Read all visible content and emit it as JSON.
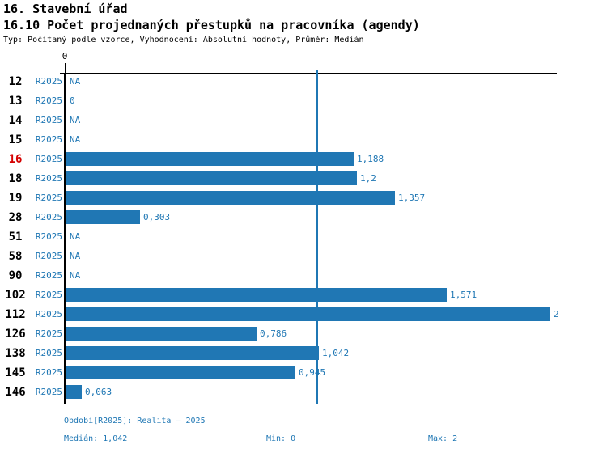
{
  "header": {
    "section_title": "16. Stavební úřad",
    "indicator_title": "16.10 Počet projednaných přestupků na pracovníka (agendy)",
    "meta": "Typ: Počítaný podle vzorce, Vyhodnocení: Absolutní hodnoty, Průměr: Medián"
  },
  "chart_data": {
    "type": "bar",
    "orientation": "horizontal",
    "title": "16.10 Počet projednaných přestupků na pracovníka (agendy)",
    "x_axis": {
      "min": 0,
      "max": 2,
      "zero_label": "0",
      "grid": false
    },
    "period_label": "R2025",
    "median": {
      "value": 1.042,
      "label": "1,042"
    },
    "categories": [
      "12",
      "13",
      "14",
      "15",
      "16",
      "18",
      "19",
      "28",
      "51",
      "58",
      "90",
      "102",
      "112",
      "126",
      "138",
      "145",
      "146"
    ],
    "values": [
      null,
      0,
      null,
      null,
      1.188,
      1.2,
      1.357,
      0.303,
      null,
      null,
      null,
      1.571,
      2,
      0.786,
      1.042,
      0.945,
      0.063
    ],
    "rows": [
      {
        "id": "12",
        "period": "R2025",
        "value": null,
        "label": "NA",
        "highlight": false
      },
      {
        "id": "13",
        "period": "R2025",
        "value": 0,
        "label": "0",
        "highlight": false
      },
      {
        "id": "14",
        "period": "R2025",
        "value": null,
        "label": "NA",
        "highlight": false
      },
      {
        "id": "15",
        "period": "R2025",
        "value": null,
        "label": "NA",
        "highlight": false
      },
      {
        "id": "16",
        "period": "R2025",
        "value": 1.188,
        "label": "1,188",
        "highlight": true
      },
      {
        "id": "18",
        "period": "R2025",
        "value": 1.2,
        "label": "1,2",
        "highlight": false
      },
      {
        "id": "19",
        "period": "R2025",
        "value": 1.357,
        "label": "1,357",
        "highlight": false
      },
      {
        "id": "28",
        "period": "R2025",
        "value": 0.303,
        "label": "0,303",
        "highlight": false
      },
      {
        "id": "51",
        "period": "R2025",
        "value": null,
        "label": "NA",
        "highlight": false
      },
      {
        "id": "58",
        "period": "R2025",
        "value": null,
        "label": "NA",
        "highlight": false
      },
      {
        "id": "90",
        "period": "R2025",
        "value": null,
        "label": "NA",
        "highlight": false
      },
      {
        "id": "102",
        "period": "R2025",
        "value": 1.571,
        "label": "1,571",
        "highlight": false
      },
      {
        "id": "112",
        "period": "R2025",
        "value": 2,
        "label": "2",
        "highlight": false
      },
      {
        "id": "126",
        "period": "R2025",
        "value": 0.786,
        "label": "0,786",
        "highlight": false
      },
      {
        "id": "138",
        "period": "R2025",
        "value": 1.042,
        "label": "1,042",
        "highlight": false
      },
      {
        "id": "145",
        "period": "R2025",
        "value": 0.945,
        "label": "0,945",
        "highlight": false
      },
      {
        "id": "146",
        "period": "R2025",
        "value": 0.063,
        "label": "0,063",
        "highlight": false
      }
    ],
    "colors": {
      "bar_blue": "#2077B4",
      "text_blue": "#1F77B4",
      "highlight_red": "#D40000",
      "axis_black": "#000000"
    }
  },
  "footer": {
    "period_line": "Období[R2025]: Realita – 2025",
    "median_label": "Medián: 1,042",
    "min_label": "Min: 0",
    "max_label": "Max: 2"
  }
}
